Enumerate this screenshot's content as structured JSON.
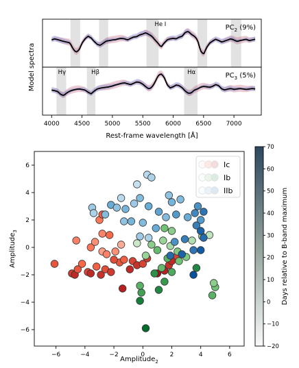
{
  "chart_data": [
    {
      "type": "line",
      "title": "",
      "ylabel": "Model spectra",
      "xlabel": "Rest-frame wavelength [Å]",
      "xlim": [
        3850,
        7450
      ],
      "xticks": [
        4000,
        4500,
        5000,
        5500,
        6000,
        6500,
        7000
      ],
      "grid": false,
      "panels": [
        {
          "label": "PC",
          "label_sub": "2",
          "label_suffix": " (9%)",
          "line_annotations": [
            {
              "text": "He I",
              "x": 5790
            }
          ],
          "shaded_bands": [
            [
              4310,
              4470
            ],
            [
              4780,
              4930
            ],
            [
              5560,
              5760
            ],
            [
              6400,
              6560
            ],
            [
              6950,
              7120
            ]
          ],
          "series": [
            {
              "color": "#000000",
              "x": [
                4000,
                4050,
                4100,
                4150,
                4200,
                4250,
                4300,
                4350,
                4400,
                4450,
                4500,
                4550,
                4600,
                4650,
                4700,
                4750,
                4800,
                4850,
                4900,
                4950,
                5000,
                5050,
                5100,
                5150,
                5200,
                5250,
                5300,
                5350,
                5400,
                5450,
                5500,
                5550,
                5600,
                5650,
                5700,
                5750,
                5800,
                5850,
                5900,
                5950,
                6000,
                6050,
                6100,
                6150,
                6200,
                6250,
                6300,
                6350,
                6400,
                6450,
                6500,
                6550,
                6600,
                6650,
                6700,
                6750,
                6800,
                6850,
                6900,
                6950,
                7000,
                7050,
                7100,
                7150,
                7200,
                7250,
                7300,
                7350
              ],
              "values": [
                0.05,
                0.1,
                0.06,
                0.02,
                -0.02,
                -0.05,
                -0.08,
                -0.35,
                -0.52,
                -0.42,
                -0.1,
                0.1,
                0.22,
                0.14,
                -0.02,
                -0.15,
                -0.2,
                -0.1,
                0.0,
                0.02,
                0.05,
                0.06,
                0.1,
                0.12,
                0.1,
                0.05,
                0.12,
                0.18,
                0.2,
                0.28,
                0.32,
                0.38,
                0.3,
                0.22,
                0.05,
                -0.1,
                -0.28,
                -0.1,
                0.05,
                0.1,
                0.12,
                0.1,
                0.18,
                0.22,
                0.4,
                0.44,
                0.3,
                0.22,
                0.05,
                -0.45,
                -0.62,
                -0.3,
                -0.1,
                0.0,
                0.08,
                0.02,
                -0.05,
                0.0,
                0.05,
                0.1,
                0.05,
                -0.02,
                0.02,
                0.05,
                0.08,
                0.02,
                0.05,
                0.08
              ]
            }
          ]
        },
        {
          "label": "PC",
          "label_sub": "3",
          "label_suffix": " (5%)",
          "line_annotations": [
            {
              "text": "H",
              "greek": "γ",
              "x": 4170
            },
            {
              "text": "H",
              "greek": "β",
              "x": 4720
            },
            {
              "text": "H",
              "greek": "α",
              "x": 6300
            }
          ],
          "shaded_bands": [
            [
              4080,
              4240
            ],
            [
              4580,
              4720
            ],
            [
              6180,
              6400
            ]
          ],
          "series": [
            {
              "color": "#000000",
              "x": [
                4000,
                4050,
                4100,
                4150,
                4200,
                4250,
                4300,
                4350,
                4400,
                4450,
                4500,
                4550,
                4600,
                4650,
                4700,
                4750,
                4800,
                4850,
                4900,
                4950,
                5000,
                5050,
                5100,
                5150,
                5200,
                5250,
                5300,
                5350,
                5400,
                5450,
                5500,
                5550,
                5600,
                5650,
                5700,
                5750,
                5800,
                5850,
                5900,
                5950,
                6000,
                6050,
                6100,
                6150,
                6200,
                6250,
                6300,
                6350,
                6400,
                6450,
                6500,
                6550,
                6600,
                6650,
                6700,
                6750,
                6800,
                6850,
                6900,
                6950,
                7000,
                7050,
                7100,
                7150,
                7200,
                7250,
                7300,
                7350
              ],
              "values": [
                -0.05,
                -0.08,
                -0.12,
                -0.25,
                -0.3,
                -0.18,
                -0.1,
                -0.05,
                -0.02,
                0.0,
                -0.02,
                -0.05,
                -0.15,
                -0.22,
                -0.1,
                0.0,
                0.04,
                0.06,
                0.08,
                0.1,
                0.14,
                0.18,
                0.22,
                0.26,
                0.28,
                0.24,
                0.2,
                0.26,
                0.32,
                0.3,
                0.22,
                0.1,
                0.0,
                0.08,
                0.3,
                0.6,
                0.7,
                0.55,
                0.2,
                0.05,
                0.1,
                0.18,
                0.15,
                0.05,
                -0.1,
                -0.2,
                -0.18,
                -0.05,
                0.0,
                0.08,
                0.12,
                0.1,
                0.08,
                0.12,
                0.2,
                0.15,
                0.0,
                -0.05,
                0.0,
                0.02,
                -0.02,
                0.0,
                0.02,
                0.0,
                -0.02,
                0.0,
                0.02,
                0.0
              ]
            }
          ]
        }
      ]
    },
    {
      "type": "scatter",
      "title": "",
      "xlabel": "Amplitude",
      "xlabel_sub": "2",
      "ylabel": "Amplitude",
      "ylabel_sub": "3",
      "xlim": [
        -7.5,
        7.0
      ],
      "ylim": [
        -7.2,
        7.0
      ],
      "xticks": [
        -6,
        -4,
        -2,
        0,
        2,
        4,
        6
      ],
      "yticks": [
        -6,
        -4,
        -2,
        0,
        2,
        4,
        6
      ],
      "grid": false,
      "legend_position": "top-right",
      "colorbar": {
        "label": "Days relative to B-band maximum",
        "range": [
          -20,
          70
        ],
        "ticks": [
          -20,
          -10,
          0,
          10,
          20,
          30,
          40,
          50,
          60,
          70
        ]
      },
      "series": [
        {
          "name": "Ic",
          "colormap": "Reds",
          "points": [
            {
              "x": -6.1,
              "y": -1.2,
              "days": 30
            },
            {
              "x": -4.9,
              "y": -1.9,
              "days": 45
            },
            {
              "x": -4.7,
              "y": -2.0,
              "days": 55
            },
            {
              "x": -4.5,
              "y": -1.6,
              "days": 30
            },
            {
              "x": -4.2,
              "y": -1.2,
              "days": 20
            },
            {
              "x": -3.8,
              "y": -1.8,
              "days": 40
            },
            {
              "x": -3.6,
              "y": -1.9,
              "days": 55
            },
            {
              "x": -3.2,
              "y": -1.4,
              "days": 25
            },
            {
              "x": -2.9,
              "y": -2.0,
              "days": 50
            },
            {
              "x": -2.6,
              "y": -1.6,
              "days": 35
            },
            {
              "x": -2.2,
              "y": -1.8,
              "days": 45
            },
            {
              "x": -1.6,
              "y": -1.1,
              "days": 30
            },
            {
              "x": -1.3,
              "y": -0.9,
              "days": 25
            },
            {
              "x": -0.7,
              "y": -1.0,
              "days": 40
            },
            {
              "x": -0.4,
              "y": -1.3,
              "days": 50
            },
            {
              "x": -0.9,
              "y": -1.6,
              "days": 55
            },
            {
              "x": -1.4,
              "y": -3.0,
              "days": 60
            },
            {
              "x": -4.6,
              "y": 0.5,
              "days": 10
            },
            {
              "x": -3.6,
              "y": 0.0,
              "days": 15
            },
            {
              "x": -3.3,
              "y": 0.4,
              "days": 5
            },
            {
              "x": -2.8,
              "y": -0.3,
              "days": 0
            },
            {
              "x": -2.5,
              "y": -0.5,
              "days": 10
            },
            {
              "x": -1.9,
              "y": -0.3,
              "days": 5
            },
            {
              "x": -1.5,
              "y": 0.2,
              "days": -5
            },
            {
              "x": -2.8,
              "y": 1.0,
              "days": 10
            },
            {
              "x": -2.3,
              "y": 0.9,
              "days": 20
            },
            {
              "x": -3.0,
              "y": 2.0,
              "days": 15
            },
            {
              "x": -2.8,
              "y": 2.4,
              "days": 25
            },
            {
              "x": 0.0,
              "y": -1.2,
              "days": 40
            },
            {
              "x": 0.3,
              "y": -0.8,
              "days": 45
            },
            {
              "x": 1.5,
              "y": -1.7,
              "days": 60
            },
            {
              "x": 1.8,
              "y": -1.3,
              "days": 50
            },
            {
              "x": 2.3,
              "y": -0.7,
              "days": 40
            },
            {
              "x": 2.0,
              "y": -1.0,
              "days": 55
            },
            {
              "x": -2.0,
              "y": -0.9,
              "days": 35
            },
            {
              "x": 1.0,
              "y": -1.9,
              "days": 70
            }
          ]
        },
        {
          "name": "Ib",
          "colormap": "Greens",
          "points": [
            {
              "x": 0.2,
              "y": -5.9,
              "days": 70
            },
            {
              "x": -0.2,
              "y": -3.9,
              "days": 60
            },
            {
              "x": -0.1,
              "y": -3.3,
              "days": 40
            },
            {
              "x": -0.2,
              "y": -2.8,
              "days": 30
            },
            {
              "x": 1.1,
              "y": -3.1,
              "days": 55
            },
            {
              "x": 1.5,
              "y": -2.5,
              "days": 45
            },
            {
              "x": 2.0,
              "y": -1.8,
              "days": 35
            },
            {
              "x": 1.3,
              "y": -1.5,
              "days": 25
            },
            {
              "x": 0.8,
              "y": -1.9,
              "days": 50
            },
            {
              "x": 3.7,
              "y": -1.5,
              "days": 55
            },
            {
              "x": 4.8,
              "y": -3.5,
              "days": 30
            },
            {
              "x": 5.0,
              "y": -2.9,
              "days": 20
            },
            {
              "x": 4.9,
              "y": -2.6,
              "days": 10
            },
            {
              "x": 2.5,
              "y": -1.0,
              "days": 20
            },
            {
              "x": 3.0,
              "y": -0.7,
              "days": 15
            },
            {
              "x": 1.0,
              "y": -0.2,
              "days": 25
            },
            {
              "x": 0.6,
              "y": 0.2,
              "days": 10
            },
            {
              "x": 1.4,
              "y": 0.5,
              "days": 5
            },
            {
              "x": 1.9,
              "y": 0.1,
              "days": 0
            },
            {
              "x": 2.4,
              "y": -0.3,
              "days": 15
            },
            {
              "x": 3.4,
              "y": 0.5,
              "days": -5
            },
            {
              "x": 1.5,
              "y": 1.4,
              "days": 20
            },
            {
              "x": 2.0,
              "y": 1.2,
              "days": 10
            },
            {
              "x": 0.2,
              "y": -0.6,
              "days": 5
            },
            {
              "x": 4.1,
              "y": 0.8,
              "days": 0
            },
            {
              "x": 4.6,
              "y": 0.9,
              "days": -10
            },
            {
              "x": -0.4,
              "y": 0.3,
              "days": -15
            },
            {
              "x": 1.7,
              "y": -0.8,
              "days": 30
            }
          ]
        },
        {
          "name": "IIb",
          "colormap": "Blues",
          "points": [
            {
              "x": -3.5,
              "y": 2.9,
              "days": 0
            },
            {
              "x": -3.4,
              "y": 2.5,
              "days": -5
            },
            {
              "x": -2.6,
              "y": 2.4,
              "days": 10
            },
            {
              "x": -2.2,
              "y": 3.1,
              "days": 20
            },
            {
              "x": -1.8,
              "y": 2.9,
              "days": 5
            },
            {
              "x": -1.5,
              "y": 3.6,
              "days": -10
            },
            {
              "x": -1.2,
              "y": 2.8,
              "days": 15
            },
            {
              "x": -0.6,
              "y": 3.2,
              "days": 0
            },
            {
              "x": -0.4,
              "y": 4.6,
              "days": -15
            },
            {
              "x": 0.3,
              "y": 5.3,
              "days": -10
            },
            {
              "x": 0.6,
              "y": 5.1,
              "days": -5
            },
            {
              "x": -0.2,
              "y": 3.6,
              "days": 10
            },
            {
              "x": 0.4,
              "y": 3.0,
              "days": 20
            },
            {
              "x": -1.3,
              "y": 1.9,
              "days": 5
            },
            {
              "x": -0.8,
              "y": 1.9,
              "days": 15
            },
            {
              "x": 0.0,
              "y": 1.8,
              "days": 10
            },
            {
              "x": -0.2,
              "y": 0.8,
              "days": 0
            },
            {
              "x": 0.4,
              "y": 0.7,
              "days": -5
            },
            {
              "x": 1.1,
              "y": 2.6,
              "days": 25
            },
            {
              "x": 1.8,
              "y": 3.8,
              "days": 5
            },
            {
              "x": 2.3,
              "y": 2.4,
              "days": 30
            },
            {
              "x": 2.0,
              "y": 3.3,
              "days": 15
            },
            {
              "x": 2.6,
              "y": 3.5,
              "days": 10
            },
            {
              "x": 3.1,
              "y": 2.2,
              "days": 20
            },
            {
              "x": 3.6,
              "y": 2.5,
              "days": 40
            },
            {
              "x": 3.8,
              "y": 3.0,
              "days": 35
            },
            {
              "x": 4.2,
              "y": 2.6,
              "days": 50
            },
            {
              "x": 4.0,
              "y": 2.0,
              "days": 30
            },
            {
              "x": 3.7,
              "y": 1.6,
              "days": 45
            },
            {
              "x": 4.0,
              "y": 1.2,
              "days": 60
            },
            {
              "x": 4.2,
              "y": 0.7,
              "days": 55
            },
            {
              "x": 4.0,
              "y": -0.2,
              "days": 65
            },
            {
              "x": 3.5,
              "y": -0.2,
              "days": 50
            },
            {
              "x": 3.5,
              "y": -2.0,
              "days": 70
            },
            {
              "x": 2.7,
              "y": -0.5,
              "days": 60
            },
            {
              "x": 2.9,
              "y": 0.6,
              "days": 45
            },
            {
              "x": 1.9,
              "y": -0.6,
              "days": 55
            },
            {
              "x": 2.2,
              "y": 0.4,
              "days": 35
            },
            {
              "x": 1.6,
              "y": 2.2,
              "days": 10
            },
            {
              "x": 0.9,
              "y": 1.4,
              "days": 20
            }
          ]
        }
      ]
    }
  ]
}
